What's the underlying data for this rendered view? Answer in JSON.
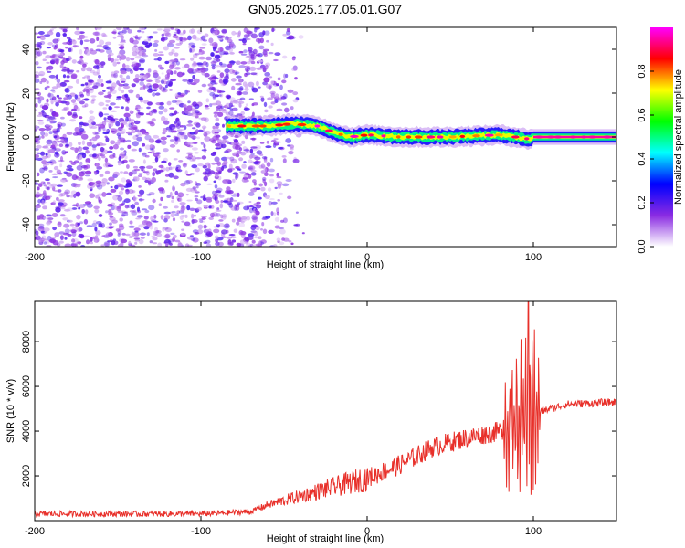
{
  "figure_title": "GN05.2025.177.05.01.G07",
  "chart_data": [
    {
      "type": "heatmap",
      "title": "",
      "xlabel": "Height of straight line (km)",
      "ylabel": "Frequency (Hz)",
      "xlim": [
        -200,
        150
      ],
      "ylim": [
        -50,
        50
      ],
      "xticks": [
        -200,
        -100,
        0,
        100
      ],
      "yticks": [
        -40,
        -20,
        0,
        20,
        40
      ],
      "colorbar": {
        "label": "Normalized spectral amplitude",
        "range": [
          0,
          1
        ],
        "ticks": [
          "0.0",
          "0.2",
          "0.4",
          "0.6",
          "0.8"
        ],
        "colormap": [
          "#ffffff",
          "#8a2be2",
          "#0000ff",
          "#00ffff",
          "#00ff00",
          "#ffff00",
          "#ff0000",
          "#ff00ff"
        ]
      },
      "features": {
        "noise_region_x": [
          -200,
          -70
        ],
        "ridge": [
          {
            "x": -85,
            "y": 5
          },
          {
            "x": -60,
            "y": 5
          },
          {
            "x": -45,
            "y": 6
          },
          {
            "x": -30,
            "y": 5
          },
          {
            "x": -20,
            "y": 2
          },
          {
            "x": -10,
            "y": 0
          },
          {
            "x": 0,
            "y": 1
          },
          {
            "x": 20,
            "y": 0
          },
          {
            "x": 50,
            "y": 0
          },
          {
            "x": 80,
            "y": 1
          },
          {
            "x": 98,
            "y": -1
          },
          {
            "x": 100,
            "y": 0
          },
          {
            "x": 150,
            "y": 0
          }
        ]
      }
    },
    {
      "type": "line",
      "title": "",
      "xlabel": "Height of straight line (km)",
      "ylabel": "SNR (10 * v/v)",
      "xlim": [
        -200,
        150
      ],
      "ylim": [
        0,
        9800
      ],
      "xticks": [
        -200,
        -100,
        0,
        100
      ],
      "yticks": [
        2000,
        4000,
        6000,
        8000
      ],
      "color": "#e8302a",
      "trend": [
        {
          "x": -200,
          "y": 300
        },
        {
          "x": -100,
          "y": 300
        },
        {
          "x": -70,
          "y": 400
        },
        {
          "x": -60,
          "y": 700
        },
        {
          "x": -40,
          "y": 1100
        },
        {
          "x": -20,
          "y": 1500
        },
        {
          "x": 0,
          "y": 1900
        },
        {
          "x": 20,
          "y": 2500
        },
        {
          "x": 40,
          "y": 3300
        },
        {
          "x": 60,
          "y": 3700
        },
        {
          "x": 80,
          "y": 4000
        },
        {
          "x": 100,
          "y": 4800
        },
        {
          "x": 120,
          "y": 5200
        },
        {
          "x": 150,
          "y": 5300
        }
      ],
      "oscillation_region_x": [
        82,
        104
      ],
      "peak": {
        "x": 97,
        "y": 9800
      }
    }
  ]
}
